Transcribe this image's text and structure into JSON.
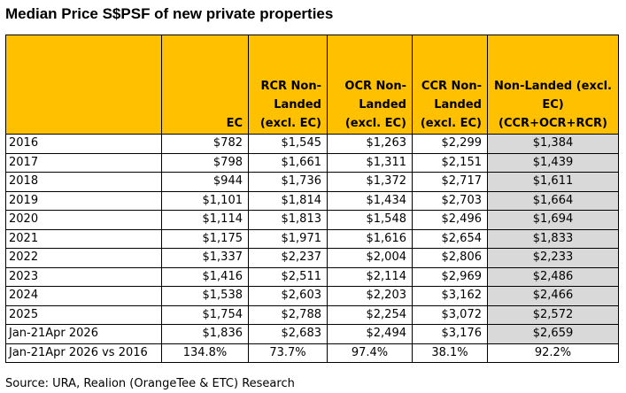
{
  "title": "Median Price S$PSF of new private properties",
  "table": {
    "headers": [
      "",
      "EC",
      [
        "RCR Non-",
        "Landed",
        "(excl. EC)"
      ],
      [
        "OCR Non-",
        "Landed",
        "(excl. EC)"
      ],
      [
        "CCR Non-",
        "Landed",
        "(excl. EC)"
      ],
      [
        "Non-Landed (excl.",
        "EC)",
        "(CCR+OCR+RCR)"
      ]
    ],
    "rows": [
      [
        "2016",
        "$782",
        "$1,545",
        "$1,263",
        "$2,299",
        "$1,384"
      ],
      [
        "2017",
        "$798",
        "$1,661",
        "$1,311",
        "$2,151",
        "$1,439"
      ],
      [
        "2018",
        "$944",
        "$1,736",
        "$1,372",
        "$2,717",
        "$1,611"
      ],
      [
        "2019",
        "$1,101",
        "$1,814",
        "$1,434",
        "$2,703",
        "$1,664"
      ],
      [
        "2020",
        "$1,114",
        "$1,813",
        "$1,548",
        "$2,496",
        "$1,694"
      ],
      [
        "2021",
        "$1,175",
        "$1,971",
        "$1,616",
        "$2,654",
        "$1,833"
      ],
      [
        "2022",
        "$1,337",
        "$2,237",
        "$2,004",
        "$2,806",
        "$2,233"
      ],
      [
        "2023",
        "$1,416",
        "$2,511",
        "$2,114",
        "$2,969",
        "$2,486"
      ],
      [
        "2024",
        "$1,538",
        "$2,603",
        "$2,203",
        "$3,162",
        "$2,466"
      ],
      [
        "2025",
        "$1,754",
        "$2,788",
        "$2,254",
        "$3,072",
        "$2,572"
      ],
      [
        "Jan-21Apr 2026",
        "$1,836",
        "$2,683",
        "$2,494",
        "$3,176",
        "$2,659"
      ],
      [
        "Jan-21Apr 2026 vs 2016",
        "134.8%",
        "73.7%",
        "97.4%",
        "38.1%",
        "92.2%"
      ]
    ]
  },
  "source": "Source: URA, Realion (OrangeTee & ETC) Research",
  "colors": {
    "header_fill": "#ffc000",
    "highlight_fill": "#d9d9d9",
    "border": "#000000"
  }
}
